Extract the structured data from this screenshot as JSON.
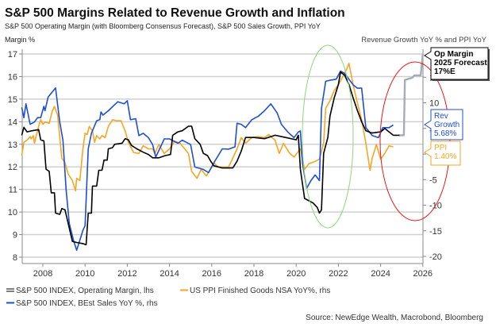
{
  "title": "S&P 500 Margins Related to Revenue Growth and Inflation",
  "subtitle": "S&P 500 Operating Margin (with Bloomberg Consensus Forecast), S&P 500 Sales Growth, PPI YoY",
  "source": "Source: NewEdge Wealth, Macrobond, Bloomberg",
  "chart_data": {
    "type": "line",
    "ylabel_left": "Margin %",
    "ylabel_right": "Revenue Growth YoY % and PPI YoY",
    "xlim": [
      2007,
      2026
    ],
    "ylim_left": [
      8,
      17
    ],
    "ylim_right": [
      -20,
      20
    ],
    "x_ticks": [
      2008,
      2010,
      2012,
      2014,
      2016,
      2018,
      2020,
      2022,
      2024,
      2026
    ],
    "y_ticks_left": [
      8,
      9,
      10,
      11,
      12,
      13,
      14,
      15,
      16,
      17
    ],
    "y_ticks_right": [
      -20,
      -15,
      -10,
      -5,
      0,
      5,
      10,
      15
    ],
    "grid": true,
    "legend_placement": "bottom",
    "colors": {
      "margin": "#000000",
      "forecast": "#a6acb4",
      "sales": "#1f4fd1",
      "ppi": "#f5a623",
      "green_ellipse": "#8fd67a",
      "red_ellipse": "#e8141b"
    },
    "series": [
      {
        "name": "S&P 500 INDEX, Operating Margin, lhs",
        "axis": "left",
        "color": "#000000",
        "x": [
          2007.0,
          2007.1,
          2007.25,
          2007.5,
          2007.8,
          2007.9,
          2008.05,
          2008.15,
          2008.3,
          2008.4,
          2008.55,
          2008.6,
          2008.8,
          2008.9,
          2009.05,
          2009.2,
          2009.4,
          2009.6,
          2009.9,
          2010.05,
          2010.15,
          2010.3,
          2010.35,
          2010.55,
          2010.65,
          2010.8,
          2010.9,
          2011.05,
          2011.1,
          2011.3,
          2011.4,
          2011.75,
          2011.9,
          2012.05,
          2012.2,
          2012.45,
          2012.75,
          2013.0,
          2013.2,
          2013.5,
          2013.8,
          2014.05,
          2014.15,
          2014.4,
          2014.6,
          2014.75,
          2014.9,
          2015.05,
          2015.2,
          2015.45,
          2015.6,
          2015.8,
          2015.95,
          2016.1,
          2016.5,
          2017.0,
          2017.2,
          2017.4,
          2017.6,
          2018.0,
          2018.5,
          2019.0,
          2019.5,
          2020.0,
          2020.1,
          2020.2,
          2020.4,
          2020.8,
          2021.0,
          2021.1,
          2021.2,
          2021.3,
          2021.5,
          2021.6,
          2021.8,
          2022.0,
          2022.1,
          2022.3,
          2022.5,
          2022.7,
          2022.9,
          2023.1,
          2023.3,
          2023.6,
          2024.0,
          2024.2,
          2024.4,
          2024.6,
          2024.9
        ],
        "y": [
          13.4,
          13.75,
          13.55,
          13.6,
          13.65,
          13.2,
          13.15,
          11.9,
          11.8,
          10.85,
          10.85,
          9.95,
          9.9,
          10.15,
          10.1,
          9.5,
          8.7,
          8.65,
          8.6,
          8.55,
          9.95,
          9.95,
          11.15,
          11.15,
          11.85,
          11.85,
          12.3,
          12.3,
          12.8,
          12.85,
          13.0,
          13.05,
          13.25,
          13.2,
          12.95,
          12.8,
          12.65,
          12.55,
          12.4,
          12.4,
          12.5,
          12.55,
          13.4,
          13.55,
          13.6,
          13.7,
          13.8,
          13.8,
          13.25,
          13.0,
          12.6,
          12.5,
          12.25,
          12.05,
          11.95,
          11.95,
          12.25,
          12.7,
          13.3,
          13.3,
          13.25,
          13.4,
          13.3,
          13.2,
          13.4,
          11.9,
          10.6,
          10.4,
          10.2,
          9.95,
          10.1,
          12.6,
          13.3,
          14.25,
          15.05,
          15.65,
          16.2,
          16.05,
          15.65,
          15.05,
          14.5,
          14.0,
          13.6,
          13.5,
          13.55,
          13.7,
          13.55,
          13.4,
          13.4
        ]
      },
      {
        "name": "Op Margin forecast",
        "axis": "left",
        "color": "#a6acb4",
        "x": [
          2024.9,
          2025.1,
          2025.15,
          2025.5,
          2025.6,
          2025.9,
          2026.0
        ],
        "y": [
          13.4,
          13.4,
          15.85,
          15.95,
          16.05,
          16.05,
          17.0
        ]
      },
      {
        "name": "S&P 500 INDEX, BEst Sales YoY %, rhs",
        "axis": "right",
        "color": "#1f4fd1",
        "x": [
          2007.0,
          2007.1,
          2007.2,
          2007.4,
          2007.6,
          2007.75,
          2007.9,
          2008.05,
          2008.1,
          2008.25,
          2008.6,
          2008.8,
          2008.95,
          2009.1,
          2009.25,
          2009.45,
          2009.6,
          2009.8,
          2009.9,
          2010.0,
          2010.15,
          2010.3,
          2010.55,
          2010.7,
          2010.75,
          2010.85,
          2011.1,
          2011.55,
          2011.85,
          2012.0,
          2012.15,
          2012.4,
          2012.55,
          2012.75,
          2013.0,
          2013.2,
          2013.35,
          2013.75,
          2014.0,
          2014.4,
          2014.6,
          2015.0,
          2015.2,
          2015.6,
          2015.85,
          2016.1,
          2016.3,
          2016.5,
          2016.8,
          2017.1,
          2017.2,
          2017.4,
          2017.6,
          2017.9,
          2018.2,
          2018.5,
          2018.8,
          2019.1,
          2019.3,
          2019.6,
          2019.9,
          2020.1,
          2020.2,
          2020.3,
          2020.5,
          2020.7,
          2020.9,
          2021.1,
          2021.2,
          2021.4,
          2021.6,
          2021.9,
          2022.1,
          2022.3,
          2022.5,
          2022.7,
          2022.9,
          2023.1,
          2023.3,
          2023.6,
          2023.9,
          2024.1,
          2024.4,
          2024.6
        ],
        "y": [
          9.1,
          7.1,
          9.8,
          5.8,
          6.25,
          7.1,
          7.1,
          9.3,
          8.45,
          11.1,
          12.9,
          6.25,
          2.7,
          -6.95,
          -13.55,
          -16.85,
          -18.8,
          -16.2,
          -14.9,
          -14.0,
          1.0,
          4.05,
          6.5,
          6.7,
          8.2,
          7.6,
          8.45,
          10.2,
          9.8,
          10.4,
          6.7,
          6.9,
          3.6,
          4.05,
          3.2,
          1.85,
          -0.6,
          2.95,
          2.95,
          2.1,
          2.7,
          1.85,
          -2.55,
          -3.0,
          -3.65,
          -1.7,
          -0.35,
          1.0,
          0.95,
          1.4,
          6.0,
          5.8,
          5.15,
          6.7,
          7.35,
          8.45,
          9.8,
          8.0,
          5.8,
          4.3,
          3.2,
          4.3,
          4.5,
          -1.9,
          -6.7,
          -5.2,
          -4.1,
          -5.2,
          8.9,
          14.2,
          14.4,
          14.6,
          16.2,
          15.7,
          14.6,
          13.5,
          12.85,
          12.85,
          5.15,
          3.6,
          3.2,
          5.15,
          5.15,
          5.68
        ]
      },
      {
        "name": "US PPI Finished Goods NSA YoY%, rhs",
        "axis": "right",
        "color": "#f5a623",
        "x": [
          2007.0,
          2007.1,
          2007.25,
          2007.4,
          2007.45,
          2007.55,
          2007.6,
          2007.8,
          2007.9,
          2008.0,
          2008.1,
          2008.3,
          2008.45,
          2008.55,
          2008.7,
          2008.9,
          2009.05,
          2009.2,
          2009.4,
          2009.55,
          2009.6,
          2009.75,
          2009.9,
          2010.0,
          2010.1,
          2010.2,
          2010.35,
          2010.45,
          2010.55,
          2010.7,
          2010.8,
          2010.95,
          2011.1,
          2011.3,
          2011.5,
          2011.7,
          2011.9,
          2012.05,
          2012.3,
          2012.55,
          2012.75,
          2013.0,
          2013.2,
          2013.3,
          2013.5,
          2013.75,
          2014.0,
          2014.25,
          2014.5,
          2014.9,
          2015.05,
          2015.3,
          2015.5,
          2015.75,
          2016.0,
          2016.1,
          2016.3,
          2016.8,
          2017.2,
          2017.4,
          2017.6,
          2017.9,
          2018.2,
          2018.5,
          2018.7,
          2019.0,
          2019.2,
          2019.4,
          2019.7,
          2019.9,
          2020.2,
          2020.4,
          2020.6,
          2020.9,
          2021.1,
          2021.3,
          2021.4,
          2021.6,
          2021.8,
          2022.0,
          2022.2,
          2022.4,
          2022.5,
          2022.7,
          2022.9,
          2023.1,
          2023.3,
          2023.5,
          2023.6,
          2023.8,
          2024.0,
          2024.2,
          2024.4,
          2024.6
        ],
        "y": [
          -0.35,
          2.3,
          2.7,
          3.4,
          2.95,
          3.6,
          2.1,
          5.4,
          6.7,
          5.8,
          6.25,
          6.0,
          8.45,
          9.3,
          7.6,
          -0.8,
          -1.7,
          -3.9,
          -5.2,
          -7.2,
          -4.75,
          -5.2,
          1.0,
          4.05,
          3.8,
          5.4,
          4.5,
          2.3,
          3.6,
          2.95,
          3.6,
          3.2,
          5.4,
          6.7,
          6.5,
          6.5,
          4.5,
          2.3,
          0.3,
          0.1,
          1.6,
          1.0,
          1.0,
          0.1,
          1.85,
          0.1,
          1.0,
          2.5,
          2.1,
          0.1,
          -3.4,
          -4.75,
          -3.0,
          -4.3,
          -2.55,
          -1.7,
          -2.55,
          -2.55,
          1.0,
          3.2,
          2.1,
          3.2,
          3.4,
          3.2,
          3.8,
          2.7,
          0.1,
          2.1,
          0.1,
          -0.6,
          1.0,
          -3.0,
          -1.9,
          -1.45,
          -1.0,
          2.1,
          8.9,
          10.4,
          12.4,
          13.5,
          15.05,
          16.6,
          17.7,
          13.5,
          10.0,
          6.7,
          2.1,
          -3.2,
          -0.8,
          1.85,
          -1.0,
          0.1,
          1.6,
          1.4
        ]
      }
    ],
    "legend": [
      {
        "label": "S&P 500 INDEX, Operating Margin, lhs",
        "color": "#000000"
      },
      {
        "label": "US PPI Finished Goods NSA YoY%, rhs",
        "color": "#f5a623"
      },
      {
        "label": "S&P 500 INDEX, BEst Sales YoY %, rhs",
        "color": "#1f4fd1"
      }
    ],
    "annotations": {
      "op_margin": [
        "Op Margin",
        "2025 Forecast",
        "17%E"
      ],
      "rev_growth": [
        "Rev",
        "Growth",
        "5.68%"
      ],
      "ppi": [
        "PPI",
        "1.40%"
      ]
    }
  }
}
